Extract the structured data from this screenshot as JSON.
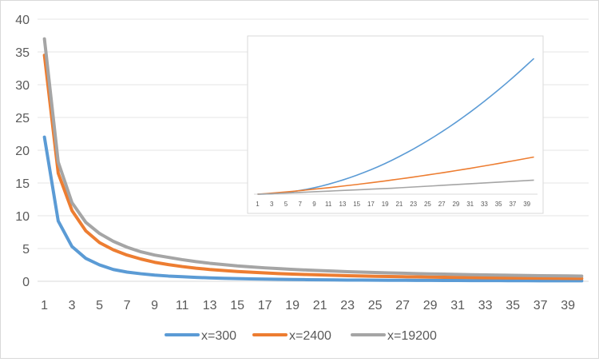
{
  "chart_data": [
    {
      "type": "line",
      "x": [
        1,
        2,
        3,
        4,
        5,
        6,
        7,
        8,
        9,
        10,
        11,
        12,
        13,
        14,
        15,
        16,
        17,
        18,
        19,
        20,
        21,
        22,
        23,
        24,
        25,
        26,
        27,
        28,
        29,
        30,
        31,
        32,
        33,
        34,
        35,
        36,
        37,
        38,
        39,
        40
      ],
      "x_tick_labels": [
        "1",
        "3",
        "5",
        "7",
        "9",
        "11",
        "13",
        "15",
        "17",
        "19",
        "21",
        "23",
        "25",
        "27",
        "29",
        "31",
        "33",
        "35",
        "37",
        "39"
      ],
      "ylim": [
        0,
        40
      ],
      "y_ticks": [
        0,
        5,
        10,
        15,
        20,
        25,
        30,
        35,
        40
      ],
      "grid": true,
      "legend_position": "bottom",
      "series": [
        {
          "name": "x=300",
          "color": "#5b9bd5",
          "values": [
            22.0,
            9.2,
            5.3,
            3.5,
            2.5,
            1.8,
            1.4,
            1.15,
            0.95,
            0.8,
            0.7,
            0.6,
            0.52,
            0.46,
            0.41,
            0.37,
            0.33,
            0.3,
            0.27,
            0.25,
            0.23,
            0.21,
            0.19,
            0.18,
            0.17,
            0.16,
            0.15,
            0.14,
            0.13,
            0.12,
            0.12,
            0.11,
            0.1,
            0.1,
            0.09,
            0.09,
            0.08,
            0.08,
            0.08,
            0.07
          ]
        },
        {
          "name": "x=2400",
          "color": "#ed7d31",
          "values": [
            34.5,
            16.5,
            10.8,
            7.7,
            5.9,
            4.8,
            4.0,
            3.4,
            2.9,
            2.55,
            2.25,
            2.0,
            1.8,
            1.65,
            1.5,
            1.38,
            1.28,
            1.18,
            1.1,
            1.03,
            0.97,
            0.91,
            0.86,
            0.81,
            0.77,
            0.73,
            0.7,
            0.67,
            0.64,
            0.61,
            0.59,
            0.56,
            0.54,
            0.52,
            0.5,
            0.49,
            0.47,
            0.46,
            0.44,
            0.43
          ]
        },
        {
          "name": "x=19200",
          "color": "#a5a5a5",
          "values": [
            37.0,
            18.2,
            12.0,
            9.0,
            7.3,
            6.1,
            5.2,
            4.5,
            4.0,
            3.65,
            3.3,
            3.0,
            2.75,
            2.55,
            2.35,
            2.2,
            2.05,
            1.93,
            1.82,
            1.72,
            1.63,
            1.55,
            1.47,
            1.4,
            1.34,
            1.28,
            1.23,
            1.18,
            1.13,
            1.09,
            1.05,
            1.01,
            0.98,
            0.95,
            0.92,
            0.89,
            0.86,
            0.84,
            0.82,
            0.8
          ]
        }
      ]
    },
    {
      "type": "line",
      "x": [
        1,
        2,
        3,
        4,
        5,
        6,
        7,
        8,
        9,
        10,
        11,
        12,
        13,
        14,
        15,
        16,
        17,
        18,
        19,
        20,
        21,
        22,
        23,
        24,
        25,
        26,
        27,
        28,
        29,
        30,
        31,
        32,
        33,
        34,
        35,
        36,
        37,
        38,
        39,
        40
      ],
      "x_tick_labels": [
        "1",
        "3",
        "5",
        "7",
        "9",
        "11",
        "13",
        "15",
        "17",
        "19",
        "21",
        "23",
        "25",
        "27",
        "29",
        "31",
        "33",
        "35",
        "37",
        "39"
      ],
      "y_axis_visible": false,
      "grid": false,
      "series": [
        {
          "color": "#5b9bd5",
          "values": [
            0.0,
            0.02,
            0.06,
            0.12,
            0.21,
            0.32,
            0.46,
            0.62,
            0.8,
            1.0,
            1.23,
            1.48,
            1.75,
            2.04,
            2.35,
            2.68,
            3.03,
            3.4,
            3.8,
            4.22,
            4.66,
            5.12,
            5.6,
            6.1,
            6.62,
            7.16,
            7.72,
            8.3,
            8.9,
            9.52,
            10.16,
            10.82,
            11.5,
            12.2,
            12.92,
            13.66,
            14.42,
            15.2,
            16.0,
            16.8
          ]
        },
        {
          "color": "#ed7d31",
          "values": [
            0.0,
            0.06,
            0.13,
            0.2,
            0.28,
            0.36,
            0.44,
            0.53,
            0.62,
            0.71,
            0.8,
            0.9,
            1.0,
            1.1,
            1.2,
            1.31,
            1.42,
            1.53,
            1.64,
            1.76,
            1.88,
            2.0,
            2.12,
            2.25,
            2.38,
            2.51,
            2.64,
            2.78,
            2.92,
            3.06,
            3.2,
            3.35,
            3.5,
            3.65,
            3.8,
            3.96,
            4.12,
            4.28,
            4.44,
            4.6
          ]
        },
        {
          "color": "#a5a5a5",
          "values": [
            0.0,
            0.03,
            0.06,
            0.1,
            0.14,
            0.18,
            0.22,
            0.26,
            0.3,
            0.34,
            0.38,
            0.42,
            0.46,
            0.5,
            0.54,
            0.58,
            0.62,
            0.66,
            0.7,
            0.74,
            0.79,
            0.84,
            0.89,
            0.94,
            0.99,
            1.04,
            1.09,
            1.14,
            1.19,
            1.24,
            1.29,
            1.34,
            1.39,
            1.44,
            1.49,
            1.54,
            1.59,
            1.64,
            1.69,
            1.74
          ]
        }
      ]
    }
  ]
}
